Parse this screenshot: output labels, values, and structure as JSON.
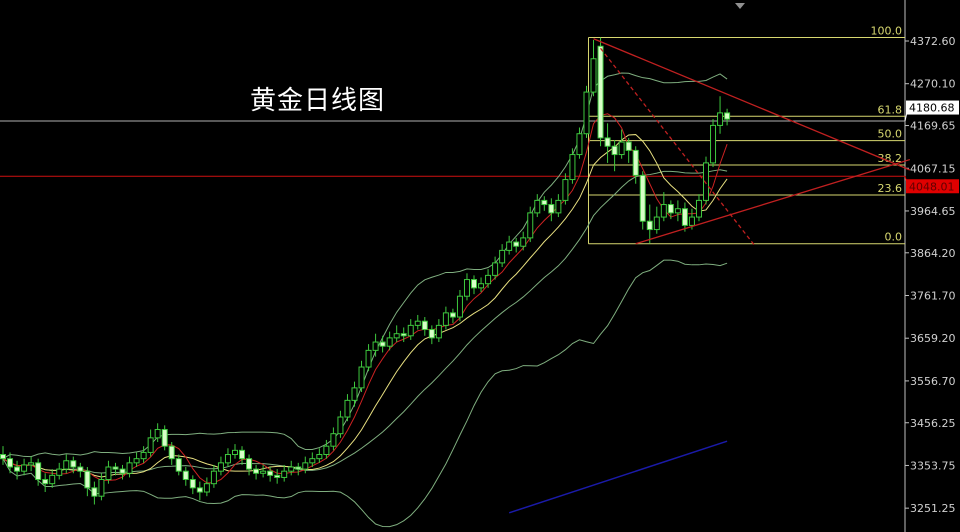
{
  "chart_data": {
    "type": "candlestick",
    "title": "黄金日线图",
    "ylim": [
      3230,
      4395
    ],
    "y_ticks": [
      "4372.60",
      "4270.10",
      "4169.65",
      "4067.15",
      "3964.65",
      "3864.20",
      "3761.70",
      "3659.20",
      "3556.70",
      "3456.25",
      "3353.75",
      "3251.25"
    ],
    "ohlc": [
      [
        3380,
        3400,
        3355,
        3370
      ],
      [
        3370,
        3385,
        3335,
        3350
      ],
      [
        3350,
        3365,
        3320,
        3340
      ],
      [
        3340,
        3370,
        3330,
        3355
      ],
      [
        3355,
        3375,
        3340,
        3360
      ],
      [
        3360,
        3370,
        3305,
        3320
      ],
      [
        3320,
        3335,
        3290,
        3310
      ],
      [
        3310,
        3345,
        3300,
        3330
      ],
      [
        3330,
        3360,
        3320,
        3345
      ],
      [
        3345,
        3380,
        3335,
        3365
      ],
      [
        3365,
        3375,
        3335,
        3350
      ],
      [
        3350,
        3360,
        3325,
        3340
      ],
      [
        3340,
        3350,
        3280,
        3300
      ],
      [
        3300,
        3315,
        3260,
        3280
      ],
      [
        3280,
        3335,
        3270,
        3320
      ],
      [
        3320,
        3365,
        3310,
        3350
      ],
      [
        3350,
        3360,
        3330,
        3345
      ],
      [
        3345,
        3355,
        3320,
        3335
      ],
      [
        3335,
        3375,
        3325,
        3360
      ],
      [
        3360,
        3385,
        3350,
        3370
      ],
      [
        3370,
        3400,
        3360,
        3385
      ],
      [
        3385,
        3440,
        3375,
        3420
      ],
      [
        3420,
        3455,
        3410,
        3440
      ],
      [
        3440,
        3450,
        3390,
        3400
      ],
      [
        3400,
        3410,
        3355,
        3370
      ],
      [
        3370,
        3380,
        3330,
        3340
      ],
      [
        3340,
        3350,
        3305,
        3320
      ],
      [
        3320,
        3330,
        3285,
        3300
      ],
      [
        3300,
        3315,
        3270,
        3290
      ],
      [
        3290,
        3325,
        3280,
        3310
      ],
      [
        3310,
        3355,
        3300,
        3340
      ],
      [
        3340,
        3375,
        3330,
        3360
      ],
      [
        3360,
        3395,
        3350,
        3380
      ],
      [
        3380,
        3405,
        3370,
        3390
      ],
      [
        3390,
        3400,
        3355,
        3370
      ],
      [
        3370,
        3380,
        3330,
        3345
      ],
      [
        3345,
        3355,
        3320,
        3335
      ],
      [
        3335,
        3355,
        3325,
        3340
      ],
      [
        3340,
        3350,
        3315,
        3330
      ],
      [
        3330,
        3345,
        3310,
        3325
      ],
      [
        3325,
        3355,
        3315,
        3340
      ],
      [
        3340,
        3365,
        3330,
        3350
      ],
      [
        3350,
        3360,
        3330,
        3345
      ],
      [
        3345,
        3375,
        3335,
        3360
      ],
      [
        3360,
        3385,
        3350,
        3370
      ],
      [
        3370,
        3395,
        3360,
        3380
      ],
      [
        3380,
        3415,
        3370,
        3400
      ],
      [
        3400,
        3445,
        3390,
        3430
      ],
      [
        3430,
        3485,
        3420,
        3470
      ],
      [
        3470,
        3525,
        3460,
        3510
      ],
      [
        3510,
        3555,
        3495,
        3540
      ],
      [
        3540,
        3605,
        3530,
        3590
      ],
      [
        3590,
        3645,
        3580,
        3630
      ],
      [
        3630,
        3670,
        3615,
        3650
      ],
      [
        3650,
        3665,
        3625,
        3640
      ],
      [
        3640,
        3675,
        3630,
        3660
      ],
      [
        3660,
        3690,
        3650,
        3670
      ],
      [
        3670,
        3685,
        3650,
        3665
      ],
      [
        3665,
        3705,
        3655,
        3690
      ],
      [
        3690,
        3715,
        3680,
        3700
      ],
      [
        3700,
        3710,
        3665,
        3680
      ],
      [
        3680,
        3690,
        3645,
        3660
      ],
      [
        3660,
        3705,
        3650,
        3690
      ],
      [
        3690,
        3735,
        3680,
        3720
      ],
      [
        3720,
        3730,
        3695,
        3710
      ],
      [
        3710,
        3775,
        3700,
        3760
      ],
      [
        3760,
        3815,
        3750,
        3800
      ],
      [
        3800,
        3810,
        3765,
        3780
      ],
      [
        3780,
        3805,
        3770,
        3790
      ],
      [
        3790,
        3825,
        3780,
        3810
      ],
      [
        3810,
        3855,
        3800,
        3840
      ],
      [
        3840,
        3885,
        3830,
        3870
      ],
      [
        3870,
        3905,
        3860,
        3890
      ],
      [
        3890,
        3900,
        3865,
        3880
      ],
      [
        3880,
        3915,
        3870,
        3900
      ],
      [
        3900,
        3975,
        3890,
        3960
      ],
      [
        3960,
        4005,
        3950,
        3990
      ],
      [
        3990,
        4000,
        3965,
        3980
      ],
      [
        3980,
        3995,
        3940,
        3960
      ],
      [
        3960,
        4005,
        3950,
        3990
      ],
      [
        3990,
        4055,
        3980,
        4040
      ],
      [
        4040,
        4115,
        4030,
        4100
      ],
      [
        4100,
        4165,
        4090,
        4150
      ],
      [
        4150,
        4265,
        4140,
        4250
      ],
      [
        4250,
        4375,
        4240,
        4330
      ],
      [
        4360,
        4381,
        4120,
        4140
      ],
      [
        4140,
        4175,
        4080,
        4120
      ],
      [
        4120,
        4135,
        4060,
        4100
      ],
      [
        4100,
        4160,
        4090,
        4130
      ],
      [
        4130,
        4140,
        4080,
        4110
      ],
      [
        4110,
        4120,
        4030,
        4050
      ],
      [
        4050,
        4060,
        3920,
        3940
      ],
      [
        3940,
        3980,
        3886,
        3920
      ],
      [
        3920,
        3975,
        3910,
        3950
      ],
      [
        3950,
        4010,
        3940,
        3980
      ],
      [
        3980,
        3990,
        3945,
        3960
      ],
      [
        3960,
        3990,
        3940,
        3970
      ],
      [
        3970,
        3985,
        3915,
        3930
      ],
      [
        3930,
        3970,
        3920,
        3950
      ],
      [
        3950,
        4005,
        3940,
        3990
      ],
      [
        3990,
        4095,
        3980,
        4080
      ],
      [
        4080,
        4185,
        4070,
        4170
      ],
      [
        4170,
        4240,
        4150,
        4200
      ],
      [
        4200,
        4210,
        4170,
        4185
      ]
    ],
    "indicators": {
      "ma_fast_color": "#cc2222",
      "ma_slow_color": "#e8e080",
      "bollinger_color": "#7fae7f",
      "long_ma_color": "#1a1aa8",
      "long_ma": [
        [
          72,
          3240
        ],
        [
          103,
          3412
        ]
      ]
    },
    "fibonacci": {
      "high": 4381,
      "low": 3886,
      "levels": [
        {
          "ratio": 1.0,
          "label": "100.0"
        },
        {
          "ratio": 0.618,
          "label": "61.8"
        },
        {
          "ratio": 0.5,
          "label": "50.0"
        },
        {
          "ratio": 0.382,
          "label": "38.2"
        },
        {
          "ratio": 0.236,
          "label": "23.6"
        },
        {
          "ratio": 0.0,
          "label": "0.0"
        }
      ],
      "start_index": 83,
      "color": "#d8d870"
    },
    "trendlines": [
      {
        "from": [
          84,
          4378
        ],
        "to": [
          129,
          4063
        ],
        "style": "solid",
        "color": "#c02020"
      },
      {
        "from": [
          90,
          3886
        ],
        "to": [
          129,
          4088
        ],
        "style": "solid",
        "color": "#c02020"
      },
      {
        "from": [
          85,
          4355
        ],
        "to": [
          107,
          3880
        ],
        "style": "dashed",
        "color": "#c02020"
      }
    ],
    "price_lines": [
      {
        "price": 4180.68,
        "label": "4180.68",
        "color": "#b0b0b0",
        "label_bg": "#ffffff",
        "label_fg": "#000000"
      },
      {
        "price": 4048.01,
        "label": "4048.01",
        "color": "#d01010",
        "label_bg": "#e00000",
        "label_fg": "#600000"
      }
    ],
    "colors": {
      "background": "#000000",
      "candle_up": "#3ec83e",
      "candle_down_fill": "#d8ffc8",
      "axis": "#c0c0c0"
    }
  }
}
